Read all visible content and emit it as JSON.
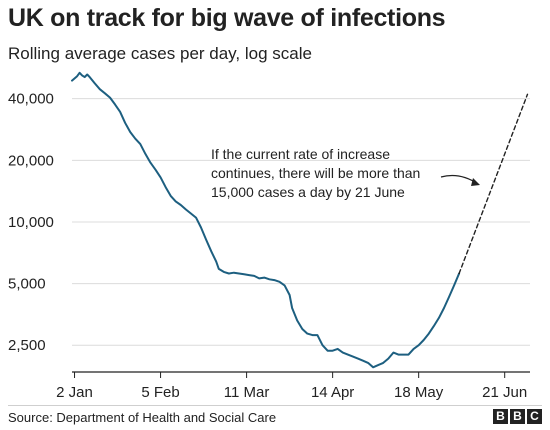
{
  "title": "UK on track for big wave of infections",
  "subtitle": "Rolling average cases per day, log scale",
  "source": "Source: Department of Health and Social Care",
  "logo_letters": [
    "B",
    "B",
    "C"
  ],
  "colors": {
    "line": "#1d5f80",
    "grid": "#dcdcdc",
    "axis": "#222222",
    "text": "#222222"
  },
  "chart_data": {
    "type": "line",
    "title": "UK on track for big wave of infections",
    "subtitle": "Rolling average cases per day, log scale",
    "y_scale": "log",
    "ylim": [
      1850,
      54000
    ],
    "xlim": [
      "2021-01-01",
      "2021-07-01"
    ],
    "grid": "horizontal",
    "y_ticks": [
      {
        "value": 2500,
        "label": "2,500"
      },
      {
        "value": 5000,
        "label": "5,000"
      },
      {
        "value": 10000,
        "label": "10,000"
      },
      {
        "value": 20000,
        "label": "20,000"
      },
      {
        "value": 40000,
        "label": "40,000"
      }
    ],
    "x_ticks": [
      {
        "value": "2021-01-02",
        "label": "2 Jan"
      },
      {
        "value": "2021-02-05",
        "label": "5 Feb"
      },
      {
        "value": "2021-03-11",
        "label": "11 Mar"
      },
      {
        "value": "2021-04-14",
        "label": "14 Apr"
      },
      {
        "value": "2021-05-18",
        "label": "18 May"
      },
      {
        "value": "2021-06-21",
        "label": "21 Jun"
      }
    ],
    "series": [
      {
        "style": "solid",
        "points": [
          [
            "2021-01-01",
            49000
          ],
          [
            "2021-01-03",
            51500
          ],
          [
            "2021-01-04",
            53500
          ],
          [
            "2021-01-05",
            52000
          ],
          [
            "2021-01-06",
            51000
          ],
          [
            "2021-01-07",
            52500
          ],
          [
            "2021-01-08",
            51000
          ],
          [
            "2021-01-10",
            47500
          ],
          [
            "2021-01-12",
            44500
          ],
          [
            "2021-01-14",
            42500
          ],
          [
            "2021-01-16",
            40500
          ],
          [
            "2021-01-18",
            37500
          ],
          [
            "2021-01-20",
            34500
          ],
          [
            "2021-01-22",
            30500
          ],
          [
            "2021-01-24",
            27500
          ],
          [
            "2021-01-26",
            25500
          ],
          [
            "2021-01-28",
            24000
          ],
          [
            "2021-01-30",
            21500
          ],
          [
            "2021-02-01",
            19500
          ],
          [
            "2021-02-03",
            18000
          ],
          [
            "2021-02-05",
            16500
          ],
          [
            "2021-02-07",
            14800
          ],
          [
            "2021-02-09",
            13400
          ],
          [
            "2021-02-11",
            12600
          ],
          [
            "2021-02-13",
            12100
          ],
          [
            "2021-02-15",
            11500
          ],
          [
            "2021-02-17",
            11000
          ],
          [
            "2021-02-19",
            10500
          ],
          [
            "2021-02-21",
            9400
          ],
          [
            "2021-02-23",
            8200
          ],
          [
            "2021-02-25",
            7200
          ],
          [
            "2021-02-27",
            6400
          ],
          [
            "2021-02-28",
            5900
          ],
          [
            "2021-03-02",
            5700
          ],
          [
            "2021-03-04",
            5600
          ],
          [
            "2021-03-06",
            5650
          ],
          [
            "2021-03-08",
            5600
          ],
          [
            "2021-03-10",
            5550
          ],
          [
            "2021-03-12",
            5500
          ],
          [
            "2021-03-14",
            5450
          ],
          [
            "2021-03-16",
            5300
          ],
          [
            "2021-03-18",
            5350
          ],
          [
            "2021-03-20",
            5250
          ],
          [
            "2021-03-22",
            5200
          ],
          [
            "2021-03-24",
            5100
          ],
          [
            "2021-03-26",
            4900
          ],
          [
            "2021-03-28",
            4400
          ],
          [
            "2021-03-29",
            3800
          ],
          [
            "2021-03-31",
            3300
          ],
          [
            "2021-04-02",
            3000
          ],
          [
            "2021-04-04",
            2850
          ],
          [
            "2021-04-06",
            2800
          ],
          [
            "2021-04-08",
            2800
          ],
          [
            "2021-04-10",
            2500
          ],
          [
            "2021-04-12",
            2350
          ],
          [
            "2021-04-14",
            2350
          ],
          [
            "2021-04-16",
            2400
          ],
          [
            "2021-04-18",
            2300
          ],
          [
            "2021-04-20",
            2250
          ],
          [
            "2021-04-22",
            2200
          ],
          [
            "2021-04-24",
            2150
          ],
          [
            "2021-04-26",
            2100
          ],
          [
            "2021-04-28",
            2050
          ],
          [
            "2021-04-30",
            1950
          ],
          [
            "2021-05-02",
            2000
          ],
          [
            "2021-05-04",
            2050
          ],
          [
            "2021-05-06",
            2150
          ],
          [
            "2021-05-08",
            2300
          ],
          [
            "2021-05-10",
            2250
          ],
          [
            "2021-05-12",
            2250
          ],
          [
            "2021-05-14",
            2250
          ],
          [
            "2021-05-16",
            2400
          ],
          [
            "2021-05-18",
            2500
          ],
          [
            "2021-05-20",
            2650
          ],
          [
            "2021-05-22",
            2850
          ],
          [
            "2021-05-24",
            3100
          ],
          [
            "2021-05-26",
            3400
          ],
          [
            "2021-05-28",
            3800
          ],
          [
            "2021-05-30",
            4300
          ],
          [
            "2021-06-01",
            4900
          ],
          [
            "2021-06-03",
            5600
          ]
        ]
      },
      {
        "style": "dashed",
        "points": [
          [
            "2021-06-03",
            5600
          ],
          [
            "2021-06-30",
            42000
          ]
        ]
      }
    ],
    "annotation": {
      "lines": [
        "If the current rate of increase",
        "continues, there will be more than",
        "15,000 cases a day by 21 June"
      ]
    }
  }
}
